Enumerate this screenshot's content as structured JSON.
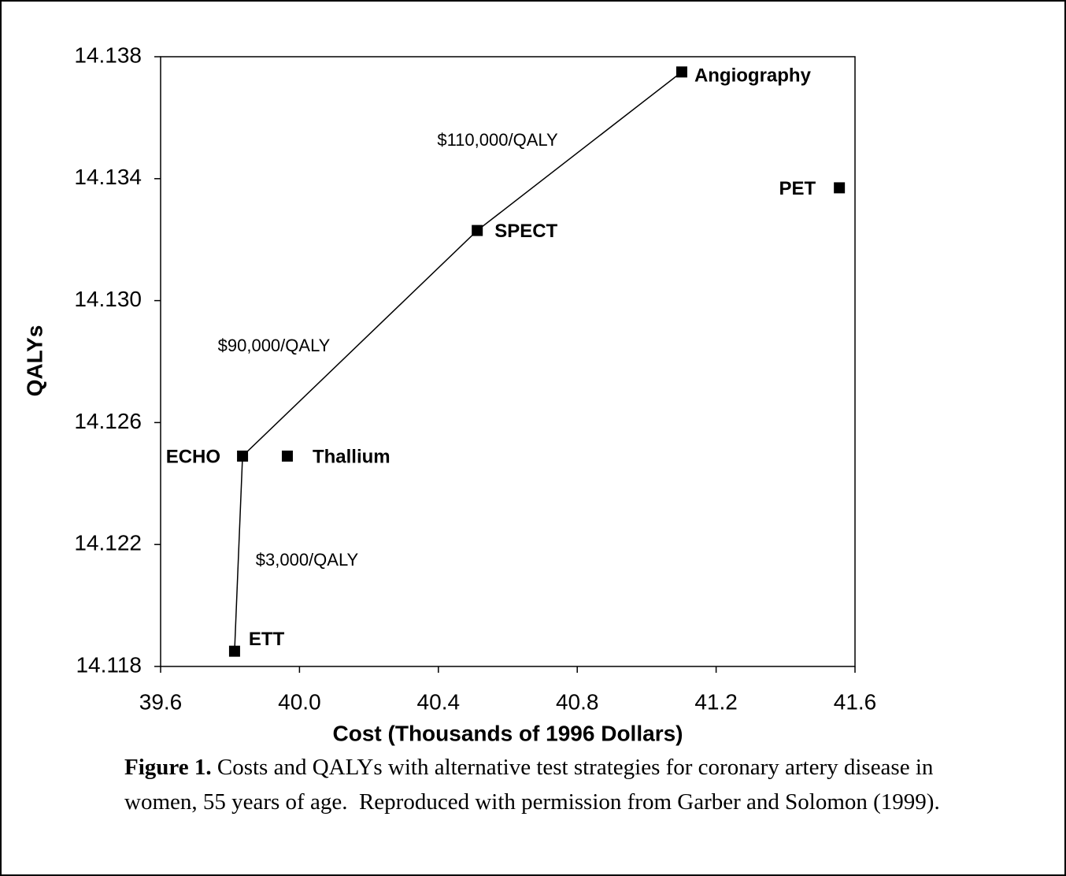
{
  "chart_data": {
    "type": "scatter",
    "xlabel": "Cost (Thousands of 1996 Dollars)",
    "ylabel": "QALYs",
    "xlim": [
      39.6,
      41.6
    ],
    "xticks": [
      39.6,
      {
        "value": 40.0,
        "label": "40.0"
      },
      40.4,
      40.8,
      41.2,
      41.6
    ],
    "ylim": [
      14.118,
      14.138
    ],
    "yticks": [
      14.118,
      14.122,
      14.126,
      {
        "value": 14.13,
        "label": "14.130"
      },
      14.134,
      14.138
    ],
    "color": "#000000",
    "series": [
      {
        "line": true,
        "labels": [
          "ETT",
          "ECHO",
          "SPECT",
          "Angiography"
        ],
        "x": [
          39.813,
          39.836,
          40.512,
          41.101
        ],
        "y": [
          14.1185,
          14.1249,
          14.1323,
          14.1375
        ]
      },
      {
        "line": false,
        "labels": [
          "Thallium",
          "PET"
        ],
        "x": [
          39.965,
          41.555
        ],
        "y": [
          14.1249,
          14.1337
        ]
      }
    ],
    "annotations": [
      "$3,000/QALY",
      "$90,000/QALY",
      "$110,000/QALY"
    ]
  },
  "caption": {
    "label": "Figure 1.",
    "text": " Costs and QALYs with alternative test strategies for coronary artery disease in women, 55 years of age.  Reproduced with permission from Garber and Solomon (1999)."
  }
}
